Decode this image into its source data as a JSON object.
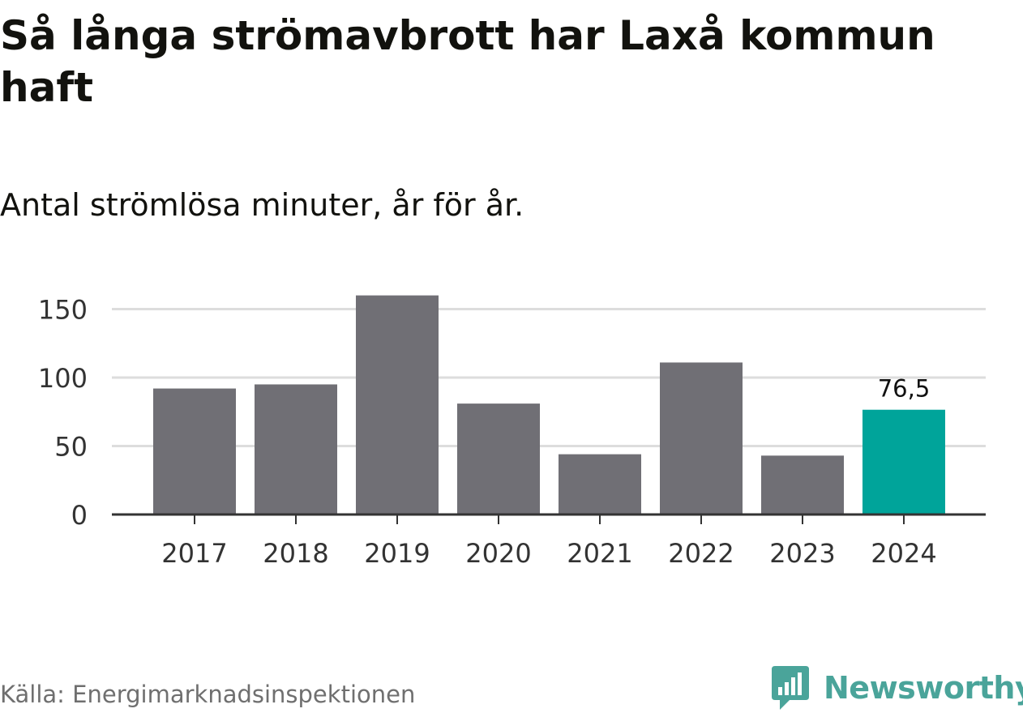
{
  "title": "Så långa strömavbrott har Laxå kommun haft",
  "subtitle": "Antal strömlösa minuter, år för år.",
  "source": "Källa: Energimarknadsinspektionen",
  "brand": {
    "name": "Newsworthy",
    "icon": "newsworthy-logo-icon",
    "color": "#4aa49a"
  },
  "colors": {
    "bar": "#706f75",
    "highlight": "#00a49a",
    "grid": "#dddddd",
    "axis": "#333333"
  },
  "chart_data": {
    "type": "bar",
    "categories": [
      "2017",
      "2018",
      "2019",
      "2020",
      "2021",
      "2022",
      "2023",
      "2024"
    ],
    "values": [
      92,
      95,
      160,
      81,
      44,
      111,
      43,
      76.5
    ],
    "highlight_index": 7,
    "data_labels": [
      {
        "index": 7,
        "text": "76,5"
      }
    ],
    "yticks": [
      0,
      50,
      100,
      150
    ],
    "ylim": [
      0,
      160
    ],
    "grid": true,
    "legend": "none"
  }
}
